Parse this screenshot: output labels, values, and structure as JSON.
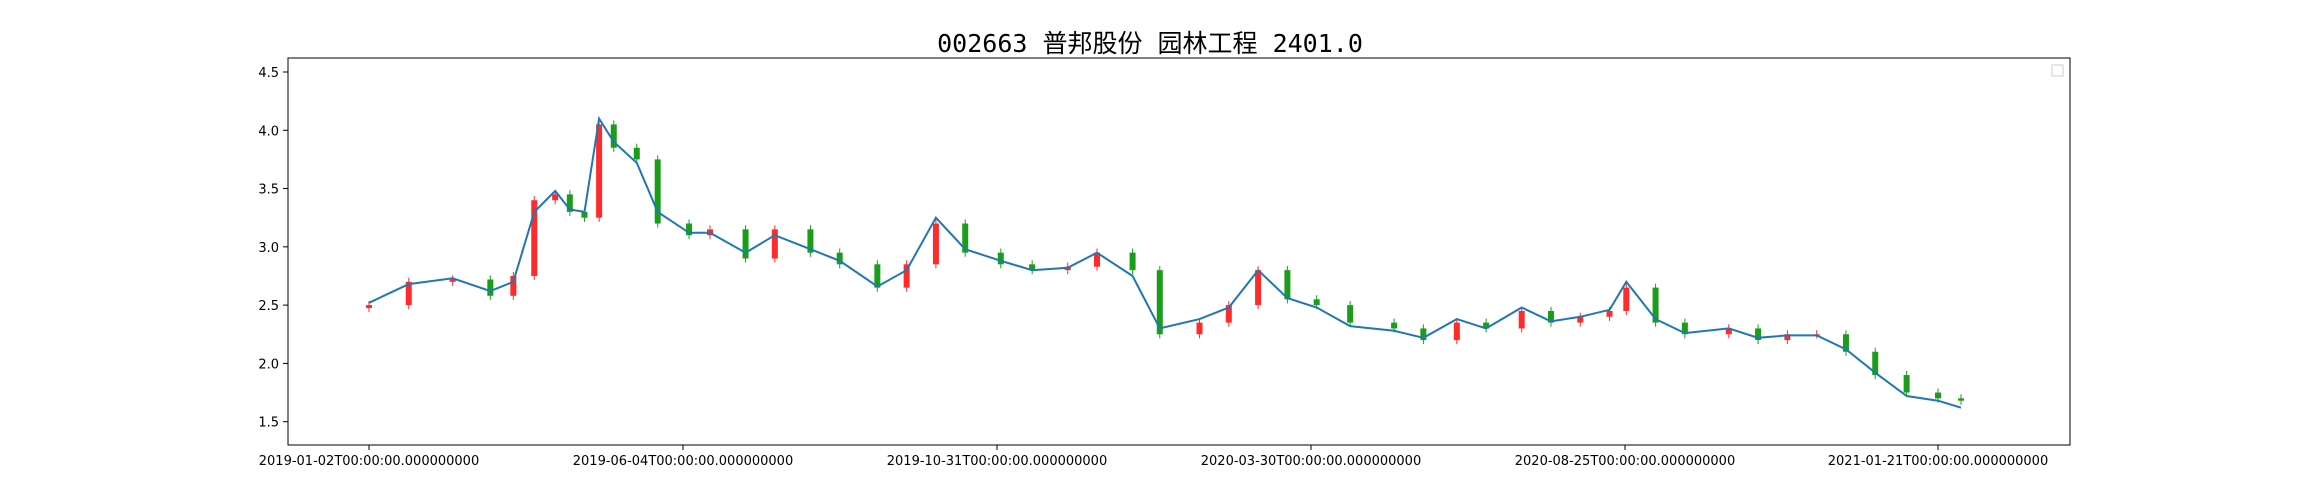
{
  "chart_data": {
    "type": "candlestick",
    "title": "002663 普邦股份 园林工程 2401.0",
    "xlabel": "",
    "ylabel": "",
    "ylim": [
      1.3,
      4.62
    ],
    "grid": false,
    "legend": {
      "placement": "upper-right",
      "entries": []
    },
    "colors": {
      "up": "#ff2a2a",
      "down": "#1a9e1a",
      "ma_line": "#1f77b4"
    },
    "x_tick_labels": [
      "2019-01-02T00:00:00.000000000",
      "2019-06-04T00:00:00.000000000",
      "2019-10-31T00:00:00.000000000",
      "2020-03-30T00:00:00.000000000",
      "2020-08-25T00:00:00.000000000",
      "2021-01-21T00:00:00.000000000"
    ],
    "y_ticks": [
      1.5,
      2.0,
      2.5,
      3.0,
      3.5,
      4.0,
      4.5
    ],
    "y_tick_labels": [
      "1.5",
      "2.0",
      "2.5",
      "3.0",
      "3.5",
      "4.0",
      "4.5"
    ],
    "series": [
      {
        "dates": [
          "2019-01-02",
          "2019-01-21",
          "2019-02-11",
          "2019-03-01",
          "2019-03-12",
          "2019-03-22",
          "2019-04-01",
          "2019-04-08",
          "2019-04-15",
          "2019-04-22",
          "2019-04-29",
          "2019-05-10",
          "2019-05-20",
          "2019-06-04",
          "2019-06-14",
          "2019-07-01",
          "2019-07-15",
          "2019-08-01",
          "2019-08-15",
          "2019-09-02",
          "2019-09-16",
          "2019-09-30",
          "2019-10-14",
          "2019-10-31",
          "2019-11-15",
          "2019-12-02",
          "2019-12-16",
          "2020-01-02",
          "2020-01-15",
          "2020-02-03",
          "2020-02-17",
          "2020-03-02",
          "2020-03-16",
          "2020-03-30",
          "2020-04-15",
          "2020-05-06",
          "2020-05-20",
          "2020-06-05",
          "2020-06-19",
          "2020-07-06",
          "2020-07-20",
          "2020-08-03",
          "2020-08-17",
          "2020-08-25",
          "2020-09-08",
          "2020-09-22",
          "2020-10-13",
          "2020-10-27",
          "2020-11-10",
          "2020-11-24",
          "2020-12-08",
          "2020-12-22",
          "2021-01-06",
          "2021-01-21",
          "2021-02-01"
        ],
        "close": [
          2.5,
          2.7,
          2.72,
          2.58,
          2.75,
          3.4,
          3.45,
          3.3,
          3.25,
          4.05,
          3.85,
          3.75,
          3.2,
          3.1,
          3.15,
          2.9,
          3.15,
          2.95,
          2.85,
          2.65,
          2.85,
          3.2,
          2.95,
          2.85,
          2.8,
          2.83,
          2.95,
          2.8,
          2.25,
          2.35,
          2.5,
          2.8,
          2.55,
          2.5,
          2.35,
          2.3,
          2.2,
          2.35,
          2.3,
          2.45,
          2.35,
          2.4,
          2.45,
          2.65,
          2.35,
          2.25,
          2.3,
          2.2,
          2.25,
          2.25,
          2.1,
          1.9,
          1.75,
          1.7,
          1.68
        ],
        "ma": [
          2.52,
          2.68,
          2.73,
          2.62,
          2.7,
          3.3,
          3.48,
          3.32,
          3.3,
          4.1,
          3.9,
          3.72,
          3.3,
          3.12,
          3.12,
          2.95,
          3.1,
          2.98,
          2.88,
          2.66,
          2.8,
          3.25,
          2.98,
          2.88,
          2.8,
          2.82,
          2.95,
          2.75,
          2.3,
          2.38,
          2.48,
          2.8,
          2.56,
          2.48,
          2.32,
          2.28,
          2.22,
          2.38,
          2.3,
          2.48,
          2.36,
          2.4,
          2.46,
          2.7,
          2.38,
          2.26,
          2.3,
          2.22,
          2.24,
          2.24,
          2.12,
          1.92,
          1.72,
          1.68,
          1.62
        ]
      }
    ]
  }
}
